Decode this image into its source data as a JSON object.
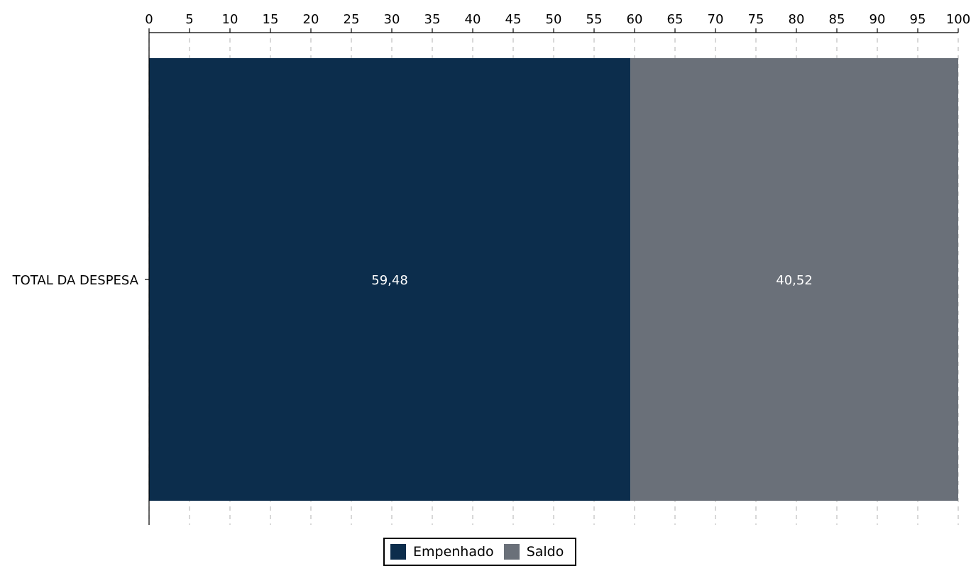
{
  "chart_data": {
    "type": "bar",
    "orientation": "horizontal",
    "stacked": true,
    "categories": [
      "TOTAL DA DESPESA"
    ],
    "series": [
      {
        "name": "Empenhado",
        "values": [
          59.48
        ],
        "label": "59,48",
        "color": "#0c2d4c"
      },
      {
        "name": "Saldo",
        "values": [
          40.52
        ],
        "label": "40,52",
        "color": "#6a7079"
      }
    ],
    "xlim": [
      0,
      100
    ],
    "xticks": [
      0,
      5,
      10,
      15,
      20,
      25,
      30,
      35,
      40,
      45,
      50,
      55,
      60,
      65,
      70,
      75,
      80,
      85,
      90,
      95,
      100
    ],
    "x_axis_position": "top",
    "grid": "vertical-dashed",
    "legend_position": "bottom-center"
  }
}
